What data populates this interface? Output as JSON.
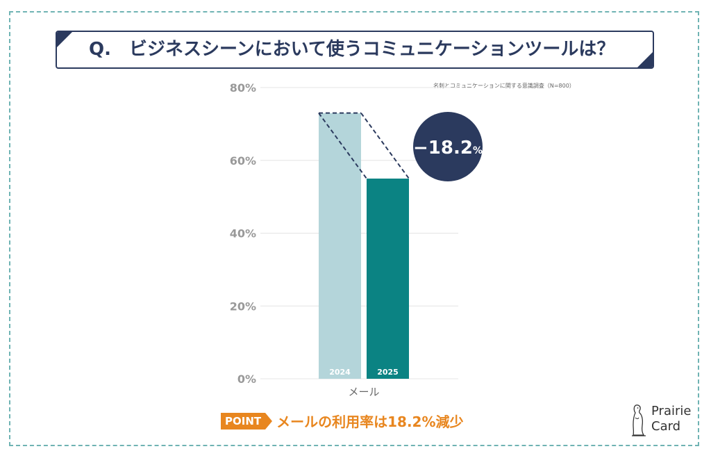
{
  "question": {
    "prefix": "Q.",
    "text": "ビジネスシーンにおいて使うコミュニケーションツールは？"
  },
  "source": "名刺とコミュニケーションに関する意識調査（N=800）",
  "chart_data": {
    "type": "bar",
    "title": "",
    "categories": [
      "メール"
    ],
    "series": [
      {
        "name": "2024",
        "values": [
          73
        ]
      },
      {
        "name": "2025",
        "values": [
          55
        ]
      }
    ],
    "ylim": [
      0,
      80
    ],
    "yticks": [
      0,
      20,
      40,
      60,
      80
    ],
    "ytick_labels": [
      "0%",
      "20%",
      "40%",
      "60%",
      "80%"
    ],
    "grid": true,
    "annotation": {
      "value": "−18.2",
      "unit": "%"
    },
    "colors": {
      "2024": "#b4d5da",
      "2025": "#0b8383",
      "badge": "#2b3a5e",
      "gridline": "#e4e4e4"
    }
  },
  "point": {
    "tag": "POINT",
    "text": "メールの利用率は18.2%減少"
  },
  "logo": {
    "icon": "prairie-dog-icon",
    "line1": "Prairie",
    "line2": "Card"
  }
}
